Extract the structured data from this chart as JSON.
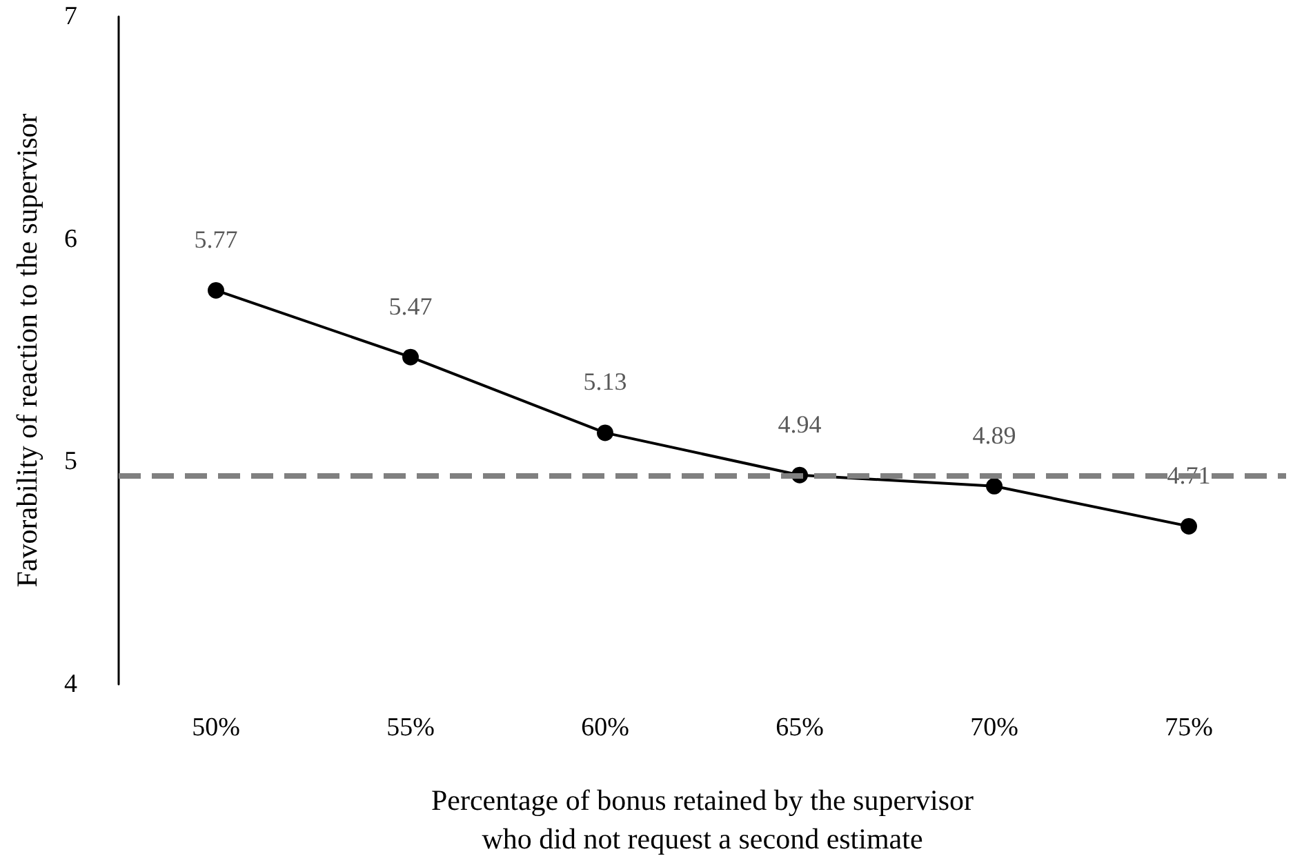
{
  "chart_data": {
    "type": "line",
    "xlabel": "Percentage of bonus retained by the supervisor\nwho did not request a second estimate",
    "ylabel": "Favorability of reaction to the supervisor",
    "categories": [
      "50%",
      "55%",
      "60%",
      "65%",
      "70%",
      "75%"
    ],
    "series": [
      {
        "color": "#000000",
        "values": [
          5.77,
          5.47,
          5.13,
          4.94,
          4.89,
          4.71
        ]
      }
    ],
    "ylim": [
      4,
      7
    ],
    "yticks": [
      4,
      5,
      6,
      7
    ],
    "grid": false,
    "marker": "circle",
    "line_style": "solid",
    "data_labels": true,
    "ref_lines": [
      {
        "axis": "y",
        "value": 4.94,
        "color": "#808080",
        "line_style": "dashed"
      }
    ]
  }
}
